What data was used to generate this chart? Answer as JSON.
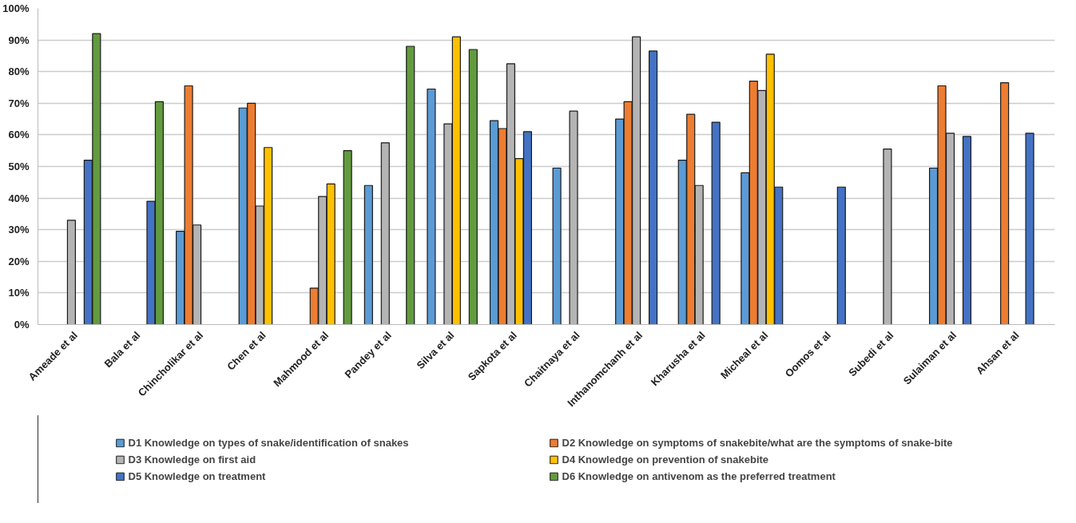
{
  "chart_data": {
    "type": "bar",
    "categories": [
      "Ameade et al",
      "Bala et al",
      "Chincholikar et al",
      "Chen et al",
      "Mahmood et al",
      "Pandey et al",
      "Silva et al",
      "Sapkota et al",
      "Chaitnaya et al",
      "Inthanomchanh et al",
      "Kharusha et al",
      "Micheal et al",
      "Oomos et al",
      "Subedi et al",
      "Sulaiman et al",
      "Ahsan et al"
    ],
    "series": [
      {
        "name": "D1 Knowledge on types of snake/identification of snakes",
        "color": "#5b9bd5",
        "values": [
          null,
          null,
          29.5,
          68.5,
          null,
          44,
          74.5,
          64.5,
          49.5,
          65,
          52,
          48,
          null,
          null,
          49.5,
          null
        ]
      },
      {
        "name": "D2 Knowledge on symptoms of snakebite/what are the symptoms of snake-bite",
        "color": "#ed7d31",
        "values": [
          null,
          null,
          75.5,
          70,
          11.5,
          null,
          null,
          62,
          null,
          70.5,
          66.5,
          77,
          null,
          null,
          75.5,
          76.5
        ]
      },
      {
        "name": "D3 Knowledge on first aid",
        "color": "#b4b4b4",
        "values": [
          33,
          null,
          31.5,
          37.5,
          40.5,
          57.5,
          63.5,
          82.5,
          67.5,
          91,
          44,
          74,
          null,
          55.5,
          60.5,
          null
        ]
      },
      {
        "name": "D4 Knowledge on prevention of snakebite",
        "color": "#ffc000",
        "values": [
          null,
          null,
          null,
          56,
          44.5,
          null,
          91,
          52.5,
          null,
          null,
          null,
          85.5,
          null,
          null,
          null,
          null
        ]
      },
      {
        "name": "D5 Knowledge on treatment",
        "color": "#4472c4",
        "values": [
          52,
          39,
          null,
          null,
          null,
          null,
          null,
          61,
          null,
          86.5,
          64,
          43.5,
          43.5,
          null,
          59.5,
          60.5
        ]
      },
      {
        "name": "D6 Knowledge on antivenom as the preferred treatment",
        "color": "#629b3f",
        "values": [
          92,
          70.5,
          null,
          null,
          55,
          88,
          87,
          null,
          null,
          null,
          null,
          null,
          null,
          null,
          null,
          null
        ]
      }
    ],
    "ylim": [
      0,
      100
    ],
    "yticks": [
      {
        "value": 0,
        "label": "0%"
      },
      {
        "value": 10,
        "label": "10%"
      },
      {
        "value": 20,
        "label": "20%"
      },
      {
        "value": 30,
        "label": "30%"
      },
      {
        "value": 40,
        "label": "40%"
      },
      {
        "value": 50,
        "label": "50%"
      },
      {
        "value": 60,
        "label": "60%"
      },
      {
        "value": 70,
        "label": "70%"
      },
      {
        "value": 80,
        "label": "80%"
      },
      {
        "value": 90,
        "label": "90%"
      },
      {
        "value": 100,
        "label": "100%"
      }
    ],
    "grid": "y",
    "legend": "bottom"
  }
}
